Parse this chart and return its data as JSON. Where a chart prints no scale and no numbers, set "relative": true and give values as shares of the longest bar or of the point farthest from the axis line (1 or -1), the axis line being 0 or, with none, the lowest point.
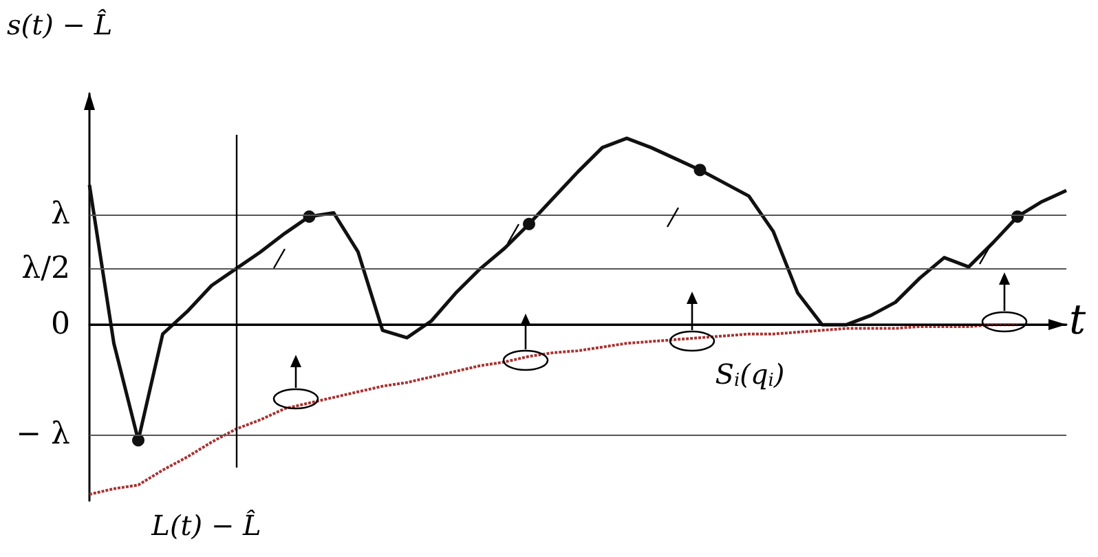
{
  "chart_data": {
    "type": "line",
    "ylabel": "s(t) − L̂",
    "xlabel": "t",
    "relative": true,
    "categories": [
      null,
      null,
      null,
      null,
      null,
      null,
      null,
      null,
      null,
      null,
      null,
      null,
      null,
      null,
      null,
      null,
      null,
      null,
      null,
      null,
      null,
      null,
      null,
      null,
      null,
      null,
      null,
      null,
      null,
      null,
      null,
      null,
      null,
      null,
      null,
      null,
      null,
      null,
      null,
      null,
      null
    ],
    "marker": "none",
    "series": [
      {
        "color": "#111111",
        "line_style": "solid",
        "values": [
          0.75,
          -0.1,
          -0.62,
          -0.05,
          0.07,
          0.21,
          0.3,
          0.39,
          0.49,
          0.58,
          0.6,
          0.39,
          -0.03,
          -0.07,
          0.02,
          0.17,
          0.3,
          0.41,
          0.54,
          0.68,
          0.82,
          0.95,
          1,
          0.95,
          0.89,
          0.83,
          0.76,
          0.69,
          0.5,
          0.17,
          0,
          0,
          0.05,
          0.12,
          0.25,
          0.36,
          0.31,
          0.44,
          0.58,
          0.66,
          0.72
        ]
      },
      {
        "color": "#111111",
        "marker": "circle",
        "values": [
          null,
          null,
          -0.62,
          null,
          null,
          null,
          null,
          null,
          null,
          0.58,
          null,
          null,
          null,
          null,
          null,
          null,
          null,
          null,
          0.54,
          null,
          null,
          null,
          null,
          null,
          null,
          0.83,
          null,
          null,
          null,
          null,
          null,
          null,
          null,
          null,
          null,
          null,
          null,
          null,
          0.58,
          null,
          null
        ]
      },
      {
        "color": "#a83232",
        "line_style": "dotted",
        "values": [
          -0.91,
          -0.88,
          -0.86,
          -0.78,
          -0.71,
          -0.63,
          -0.56,
          -0.51,
          -0.45,
          -0.42,
          -0.39,
          -0.36,
          -0.33,
          -0.31,
          -0.28,
          -0.25,
          -0.22,
          -0.2,
          -0.17,
          -0.15,
          -0.14,
          -0.12,
          -0.1,
          -0.09,
          -0.08,
          -0.07,
          -0.06,
          -0.05,
          -0.05,
          -0.04,
          -0.03,
          -0.02,
          -0.02,
          -0.02,
          -0.01,
          -0.01,
          -0.01,
          0,
          0,
          null,
          null
        ]
      }
    ],
    "ref_lines": [
      {
        "axis": "y",
        "value": 0.59,
        "label": "λ",
        "color": "#555555"
      },
      {
        "axis": "y",
        "value": 0.3,
        "label": "λ/2",
        "color": "#555555"
      },
      {
        "axis": "y",
        "value": 0,
        "label": "0",
        "color": "#000000"
      },
      {
        "axis": "y",
        "value": -0.59,
        "label": "− λ",
        "color": "#555555"
      }
    ],
    "annotations": [
      "S$_{i}$(q$_{i}$)",
      "L(t) − L̂"
    ]
  }
}
